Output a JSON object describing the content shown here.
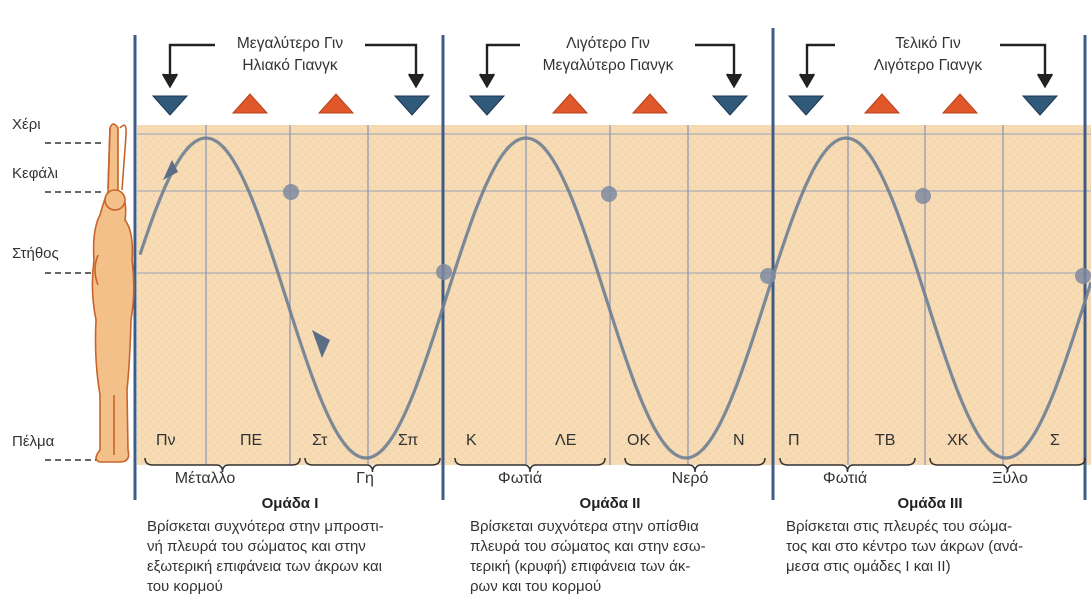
{
  "body_levels": [
    {
      "name": "level-hand",
      "label": "Χέρι"
    },
    {
      "name": "level-head",
      "label": "Κεφάλι"
    },
    {
      "name": "level-chest",
      "label": "Στήθος"
    },
    {
      "name": "level-sole",
      "label": "Πέλμα"
    }
  ],
  "sections": [
    {
      "header": [
        "Μεγαλύτερο Γιν",
        "Ηλιακό Γιανγκ"
      ],
      "markers": [
        "yin",
        "yang",
        "yang",
        "yin"
      ],
      "points": [
        "Πν",
        "ΠΕ",
        "Στ",
        "Σπ"
      ],
      "elements": [
        "Μέταλλο",
        "Γη"
      ],
      "group_title": "Ομάδα Ι",
      "group_desc": [
        "Βρίσκεται συχνότερα στην μπροστι-",
        "νή πλευρά του σώματος και στην",
        "εξωτερική επιφάνεια των άκρων και",
        "του κορμού"
      ]
    },
    {
      "header": [
        "Λιγότερο Γιν",
        "Μεγαλύτερο Γιανγκ"
      ],
      "markers": [
        "yin",
        "yang",
        "yang",
        "yin"
      ],
      "points": [
        "Κ",
        "ΛΕ",
        "ΟΚ",
        "Ν"
      ],
      "elements": [
        "Φωτιά",
        "Νερό"
      ],
      "group_title": "Ομάδα ΙΙ",
      "group_desc": [
        "Βρίσκεται συχνότερα στην οπίσθια",
        "πλευρά του σώματος και στην εσω-",
        "τερική (κρυφή) επιφάνεια των άκ-",
        "ρων και του κορμού"
      ]
    },
    {
      "header": [
        "Τελικό Γιν",
        "Λιγότερο Γιανγκ"
      ],
      "markers": [
        "yin",
        "yang",
        "yang",
        "yin"
      ],
      "points": [
        "Π",
        "ΤΒ",
        "ΧΚ",
        "Σ"
      ],
      "elements": [
        "Φωτιά",
        "Ξύλο"
      ],
      "group_title": "Ομάδα ΙΙΙ",
      "group_desc": [
        "Βρίσκεται στις πλευρές του σώμα-",
        "τος και στο κέντρο των άκρων (ανά-",
        "μεσα στις ομάδες Ι και ΙΙ)"
      ]
    }
  ],
  "colors": {
    "yin": "#2f5a7a",
    "yang": "#e0582a",
    "background": "#f5d7ad",
    "grid": "#8a97b5",
    "curve": "#6f7f92",
    "figure": "#e6924a"
  }
}
